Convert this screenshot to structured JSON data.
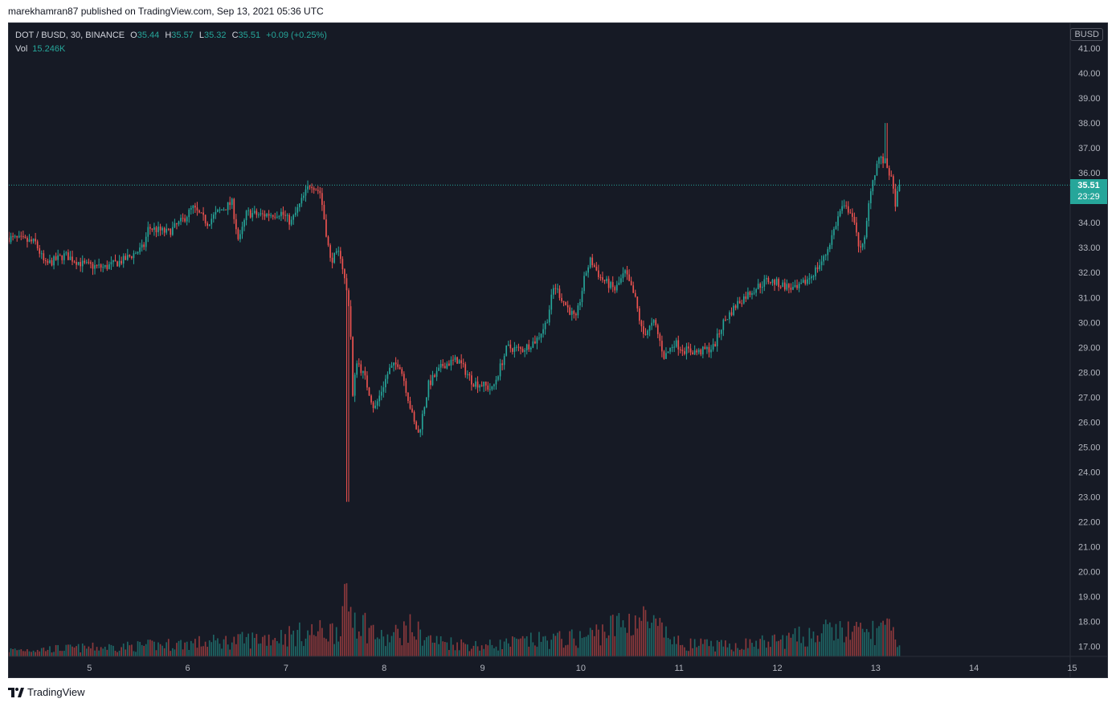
{
  "header": {
    "caption": "marekhamran87 published on TradingView.com, Sep 13, 2021 05:36 UTC"
  },
  "legend": {
    "symbol": "DOT / BUSD, 30, BINANCE",
    "o_label": "O",
    "o": "35.44",
    "h_label": "H",
    "h": "35.57",
    "l_label": "L",
    "l": "35.32",
    "c_label": "C",
    "c": "35.51",
    "change": "+0.09 (+0.25%)",
    "vol_label": "Vol",
    "vol": "15.246K"
  },
  "currency": "BUSD",
  "last_price": {
    "price": "35.51",
    "countdown": "23:29"
  },
  "footer": {
    "brand": "TradingView"
  },
  "colors": {
    "background": "#161a25",
    "up": "#26a69a",
    "down": "#ef5350",
    "axis_text": "#b2b5be"
  },
  "chart_data": {
    "type": "candlestick",
    "interval": "30",
    "y_axis": {
      "ticks": [
        "17.00",
        "18.00",
        "19.00",
        "20.00",
        "21.00",
        "22.00",
        "23.00",
        "24.00",
        "25.00",
        "26.00",
        "27.00",
        "28.00",
        "29.00",
        "30.00",
        "31.00",
        "32.00",
        "33.00",
        "34.00",
        "35.00",
        "36.00",
        "37.00",
        "38.00",
        "39.00",
        "40.00",
        "41.00"
      ],
      "range": [
        16.6,
        42.0
      ],
      "position": "right"
    },
    "x_axis": {
      "ticks": [
        "5",
        "6",
        "7",
        "8",
        "9",
        "10",
        "11",
        "12",
        "13",
        "14",
        "15"
      ],
      "tick_days": [
        5,
        6,
        7,
        8,
        9,
        10,
        11,
        12,
        13,
        14,
        15
      ],
      "range_days": [
        4.18,
        14.98
      ]
    },
    "last_price": 35.51,
    "price_path": [
      [
        4.18,
        33.4
      ],
      [
        4.45,
        33.2
      ],
      [
        4.55,
        32.3
      ],
      [
        4.75,
        32.7
      ],
      [
        4.95,
        32.3
      ],
      [
        5.15,
        32.2
      ],
      [
        5.35,
        32.5
      ],
      [
        5.55,
        33.0
      ],
      [
        5.6,
        33.8
      ],
      [
        5.8,
        33.6
      ],
      [
        5.95,
        34.1
      ],
      [
        6.05,
        34.6
      ],
      [
        6.2,
        34.0
      ],
      [
        6.3,
        34.4
      ],
      [
        6.45,
        34.8
      ],
      [
        6.52,
        33.2
      ],
      [
        6.6,
        34.4
      ],
      [
        6.75,
        34.3
      ],
      [
        6.95,
        34.4
      ],
      [
        7.05,
        34.0
      ],
      [
        7.15,
        34.8
      ],
      [
        7.25,
        35.6
      ],
      [
        7.35,
        35.2
      ],
      [
        7.45,
        32.5
      ],
      [
        7.55,
        32.8
      ],
      [
        7.65,
        30.5
      ],
      [
        7.68,
        27.0
      ],
      [
        7.72,
        28.5
      ],
      [
        7.8,
        27.8
      ],
      [
        7.9,
        26.5
      ],
      [
        8.05,
        28.1
      ],
      [
        8.15,
        28.4
      ],
      [
        8.2,
        27.7
      ],
      [
        8.3,
        26.0
      ],
      [
        8.35,
        25.5
      ],
      [
        8.45,
        27.5
      ],
      [
        8.6,
        28.3
      ],
      [
        8.75,
        28.5
      ],
      [
        8.9,
        27.6
      ],
      [
        9.0,
        27.5
      ],
      [
        9.1,
        27.3
      ],
      [
        9.25,
        29.0
      ],
      [
        9.4,
        28.9
      ],
      [
        9.55,
        29.3
      ],
      [
        9.65,
        30.0
      ],
      [
        9.73,
        31.5
      ],
      [
        9.83,
        30.8
      ],
      [
        9.95,
        30.1
      ],
      [
        10.05,
        32.0
      ],
      [
        10.1,
        32.5
      ],
      [
        10.2,
        31.8
      ],
      [
        10.35,
        31.3
      ],
      [
        10.45,
        32.0
      ],
      [
        10.55,
        31.0
      ],
      [
        10.63,
        29.5
      ],
      [
        10.75,
        30.0
      ],
      [
        10.85,
        28.6
      ],
      [
        10.95,
        29.2
      ],
      [
        11.05,
        28.9
      ],
      [
        11.2,
        28.8
      ],
      [
        11.35,
        29.0
      ],
      [
        11.45,
        30.0
      ],
      [
        11.6,
        30.8
      ],
      [
        11.75,
        31.3
      ],
      [
        11.9,
        31.7
      ],
      [
        12.05,
        31.5
      ],
      [
        12.2,
        31.3
      ],
      [
        12.35,
        31.9
      ],
      [
        12.48,
        32.6
      ],
      [
        12.55,
        33.4
      ],
      [
        12.65,
        34.6
      ],
      [
        12.75,
        34.5
      ],
      [
        12.82,
        33.2
      ],
      [
        12.88,
        33.0
      ],
      [
        12.95,
        35.4
      ],
      [
        13.03,
        36.6
      ],
      [
        13.1,
        36.4
      ],
      [
        13.15,
        35.9
      ],
      [
        13.2,
        34.8
      ],
      [
        13.25,
        35.51
      ]
    ],
    "volume_profile": [
      [
        4.18,
        0.12
      ],
      [
        5.5,
        0.2
      ],
      [
        6.5,
        0.3
      ],
      [
        7.5,
        0.5
      ],
      [
        7.62,
        1.0
      ],
      [
        7.75,
        0.7
      ],
      [
        8.0,
        0.3
      ],
      [
        8.25,
        0.55
      ],
      [
        8.5,
        0.3
      ],
      [
        9.0,
        0.2
      ],
      [
        9.5,
        0.3
      ],
      [
        10.0,
        0.35
      ],
      [
        10.6,
        0.75
      ],
      [
        11.0,
        0.25
      ],
      [
        11.5,
        0.2
      ],
      [
        12.0,
        0.3
      ],
      [
        12.6,
        0.5
      ],
      [
        12.9,
        0.45
      ],
      [
        13.1,
        0.55
      ],
      [
        13.25,
        0.25
      ]
    ]
  }
}
